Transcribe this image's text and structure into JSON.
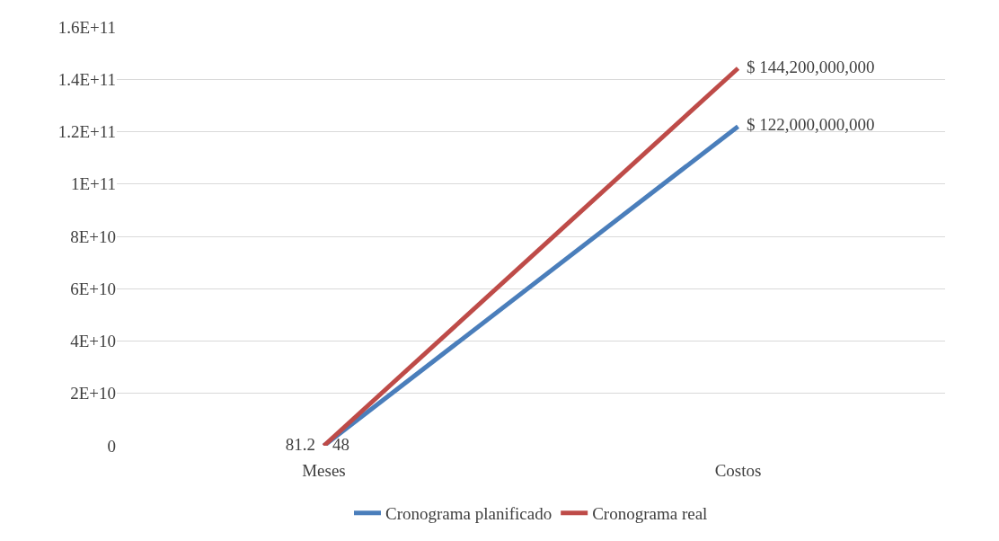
{
  "chart_data": {
    "type": "line",
    "categories": [
      "Meses",
      "Costos"
    ],
    "series": [
      {
        "name": "Cronograma planificado",
        "color": "#4a7ebb",
        "values": [
          48,
          122000000000
        ],
        "value_labels": [
          "48",
          "$ 122,000,000,000"
        ]
      },
      {
        "name": "Cronograma real",
        "color": "#be4b48",
        "values": [
          81.2,
          144200000000
        ],
        "value_labels": [
          "81.2",
          "$ 144,200,000,000"
        ]
      }
    ],
    "ylim": [
      0,
      160000000000
    ],
    "yticks": [
      0,
      {
        "value": 20000000000,
        "label": "2E+10"
      },
      {
        "value": 40000000000,
        "label": "4E+10"
      },
      {
        "value": 60000000000,
        "label": "6E+10"
      },
      {
        "value": 80000000000,
        "label": "8E+10"
      },
      {
        "value": 100000000000,
        "label": "1E+11"
      },
      {
        "value": 120000000000,
        "label": "1.2E+11"
      },
      {
        "value": 140000000000,
        "label": "1.4E+11"
      },
      {
        "value": 160000000000,
        "label": "1.6E+11"
      }
    ],
    "grid": "y",
    "legend": "bottom",
    "marker": "none",
    "line_style": "solid"
  }
}
